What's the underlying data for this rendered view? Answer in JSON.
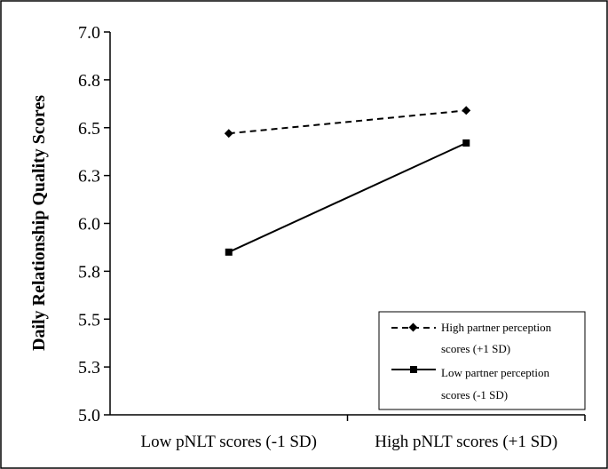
{
  "chart_data": {
    "type": "line",
    "title": "",
    "ylabel": "Daily Relationship Quality Scores",
    "xlabel": "",
    "categories": [
      "Low pNLT scores (-1 SD)",
      "High pNLT scores (+1 SD)"
    ],
    "ylim": [
      5.0,
      7.0
    ],
    "yticks": [
      "5.0",
      "5.3",
      "5.5",
      "5.8",
      "6.0",
      "6.3",
      "6.5",
      "6.8",
      "7.0"
    ],
    "ytick_values": [
      5.0,
      5.25,
      5.5,
      5.75,
      6.0,
      6.25,
      6.5,
      6.75,
      7.0
    ],
    "grid": false,
    "legend_position": "bottom-right",
    "series": [
      {
        "name": "High partner perception scores (+1 SD)",
        "legend_lines": [
          "High partner perception",
          "scores (+1 SD)"
        ],
        "values": [
          6.47,
          6.59
        ],
        "style": "dashed",
        "marker": "diamond",
        "color": "#000000"
      },
      {
        "name": "Low partner perception scores (-1 SD)",
        "legend_lines": [
          "Low partner perception",
          "scores (-1 SD)"
        ],
        "values": [
          5.85,
          6.42
        ],
        "style": "solid",
        "marker": "square",
        "color": "#000000"
      }
    ]
  }
}
